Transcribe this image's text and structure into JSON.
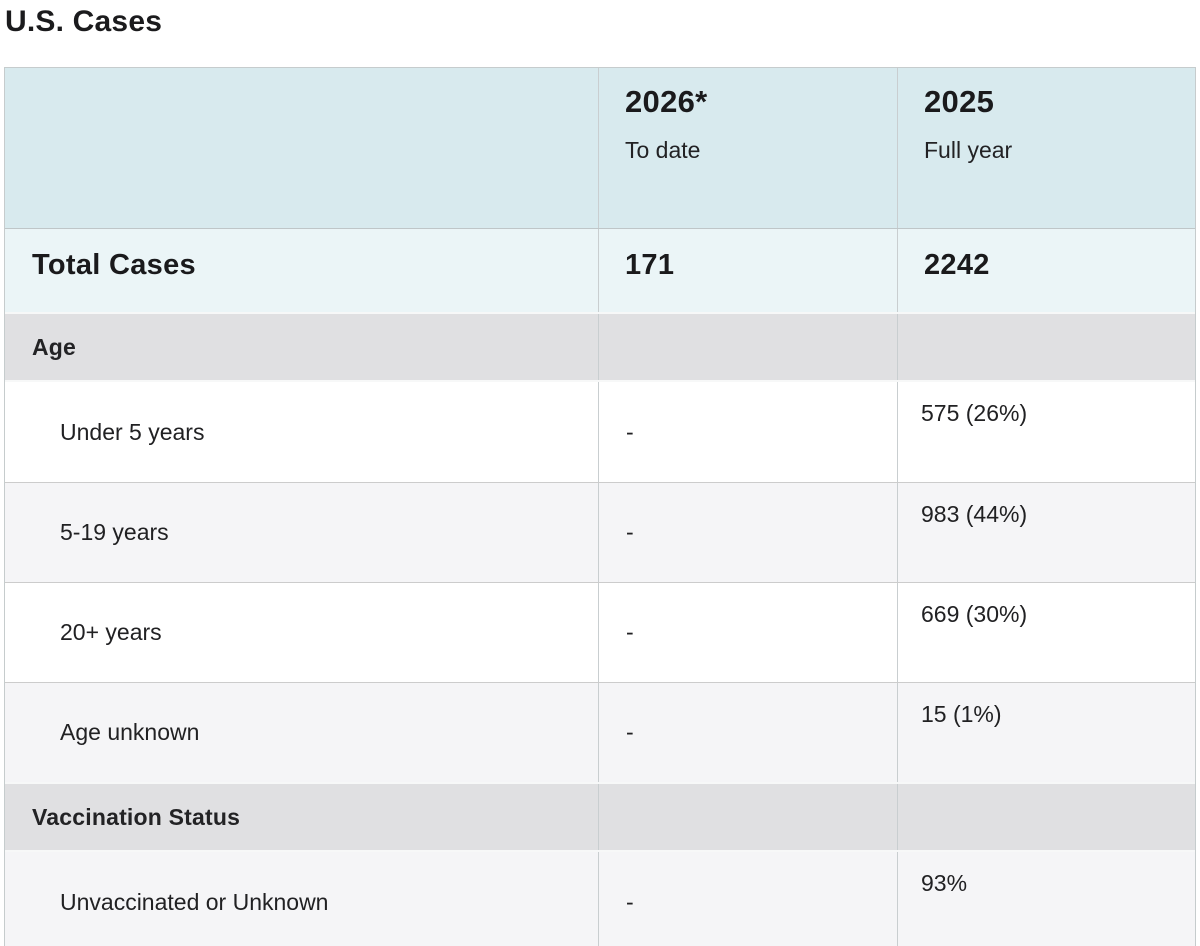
{
  "title": "U.S. Cases",
  "table": {
    "columns": [
      {
        "year": "2026*",
        "sub": "To date"
      },
      {
        "year": "2025",
        "sub": "Full year"
      }
    ],
    "total_row": {
      "label": "Total Cases",
      "val_2026": "171",
      "val_2025": "2242"
    },
    "sections": [
      {
        "header": "Age",
        "rows": [
          {
            "label": "Under 5 years",
            "val_2026": "-",
            "val_2025": "575 (26%)"
          },
          {
            "label": "5-19 years",
            "val_2026": "-",
            "val_2025": "983 (44%)"
          },
          {
            "label": "20+ years",
            "val_2026": "-",
            "val_2025": "669 (30%)"
          },
          {
            "label": "Age unknown",
            "val_2026": "-",
            "val_2025": "15 (1%)"
          }
        ]
      },
      {
        "header": "Vaccination Status",
        "rows": [
          {
            "label": "Unvaccinated or Unknown",
            "val_2026": "-",
            "val_2025": "93%"
          }
        ]
      }
    ]
  }
}
